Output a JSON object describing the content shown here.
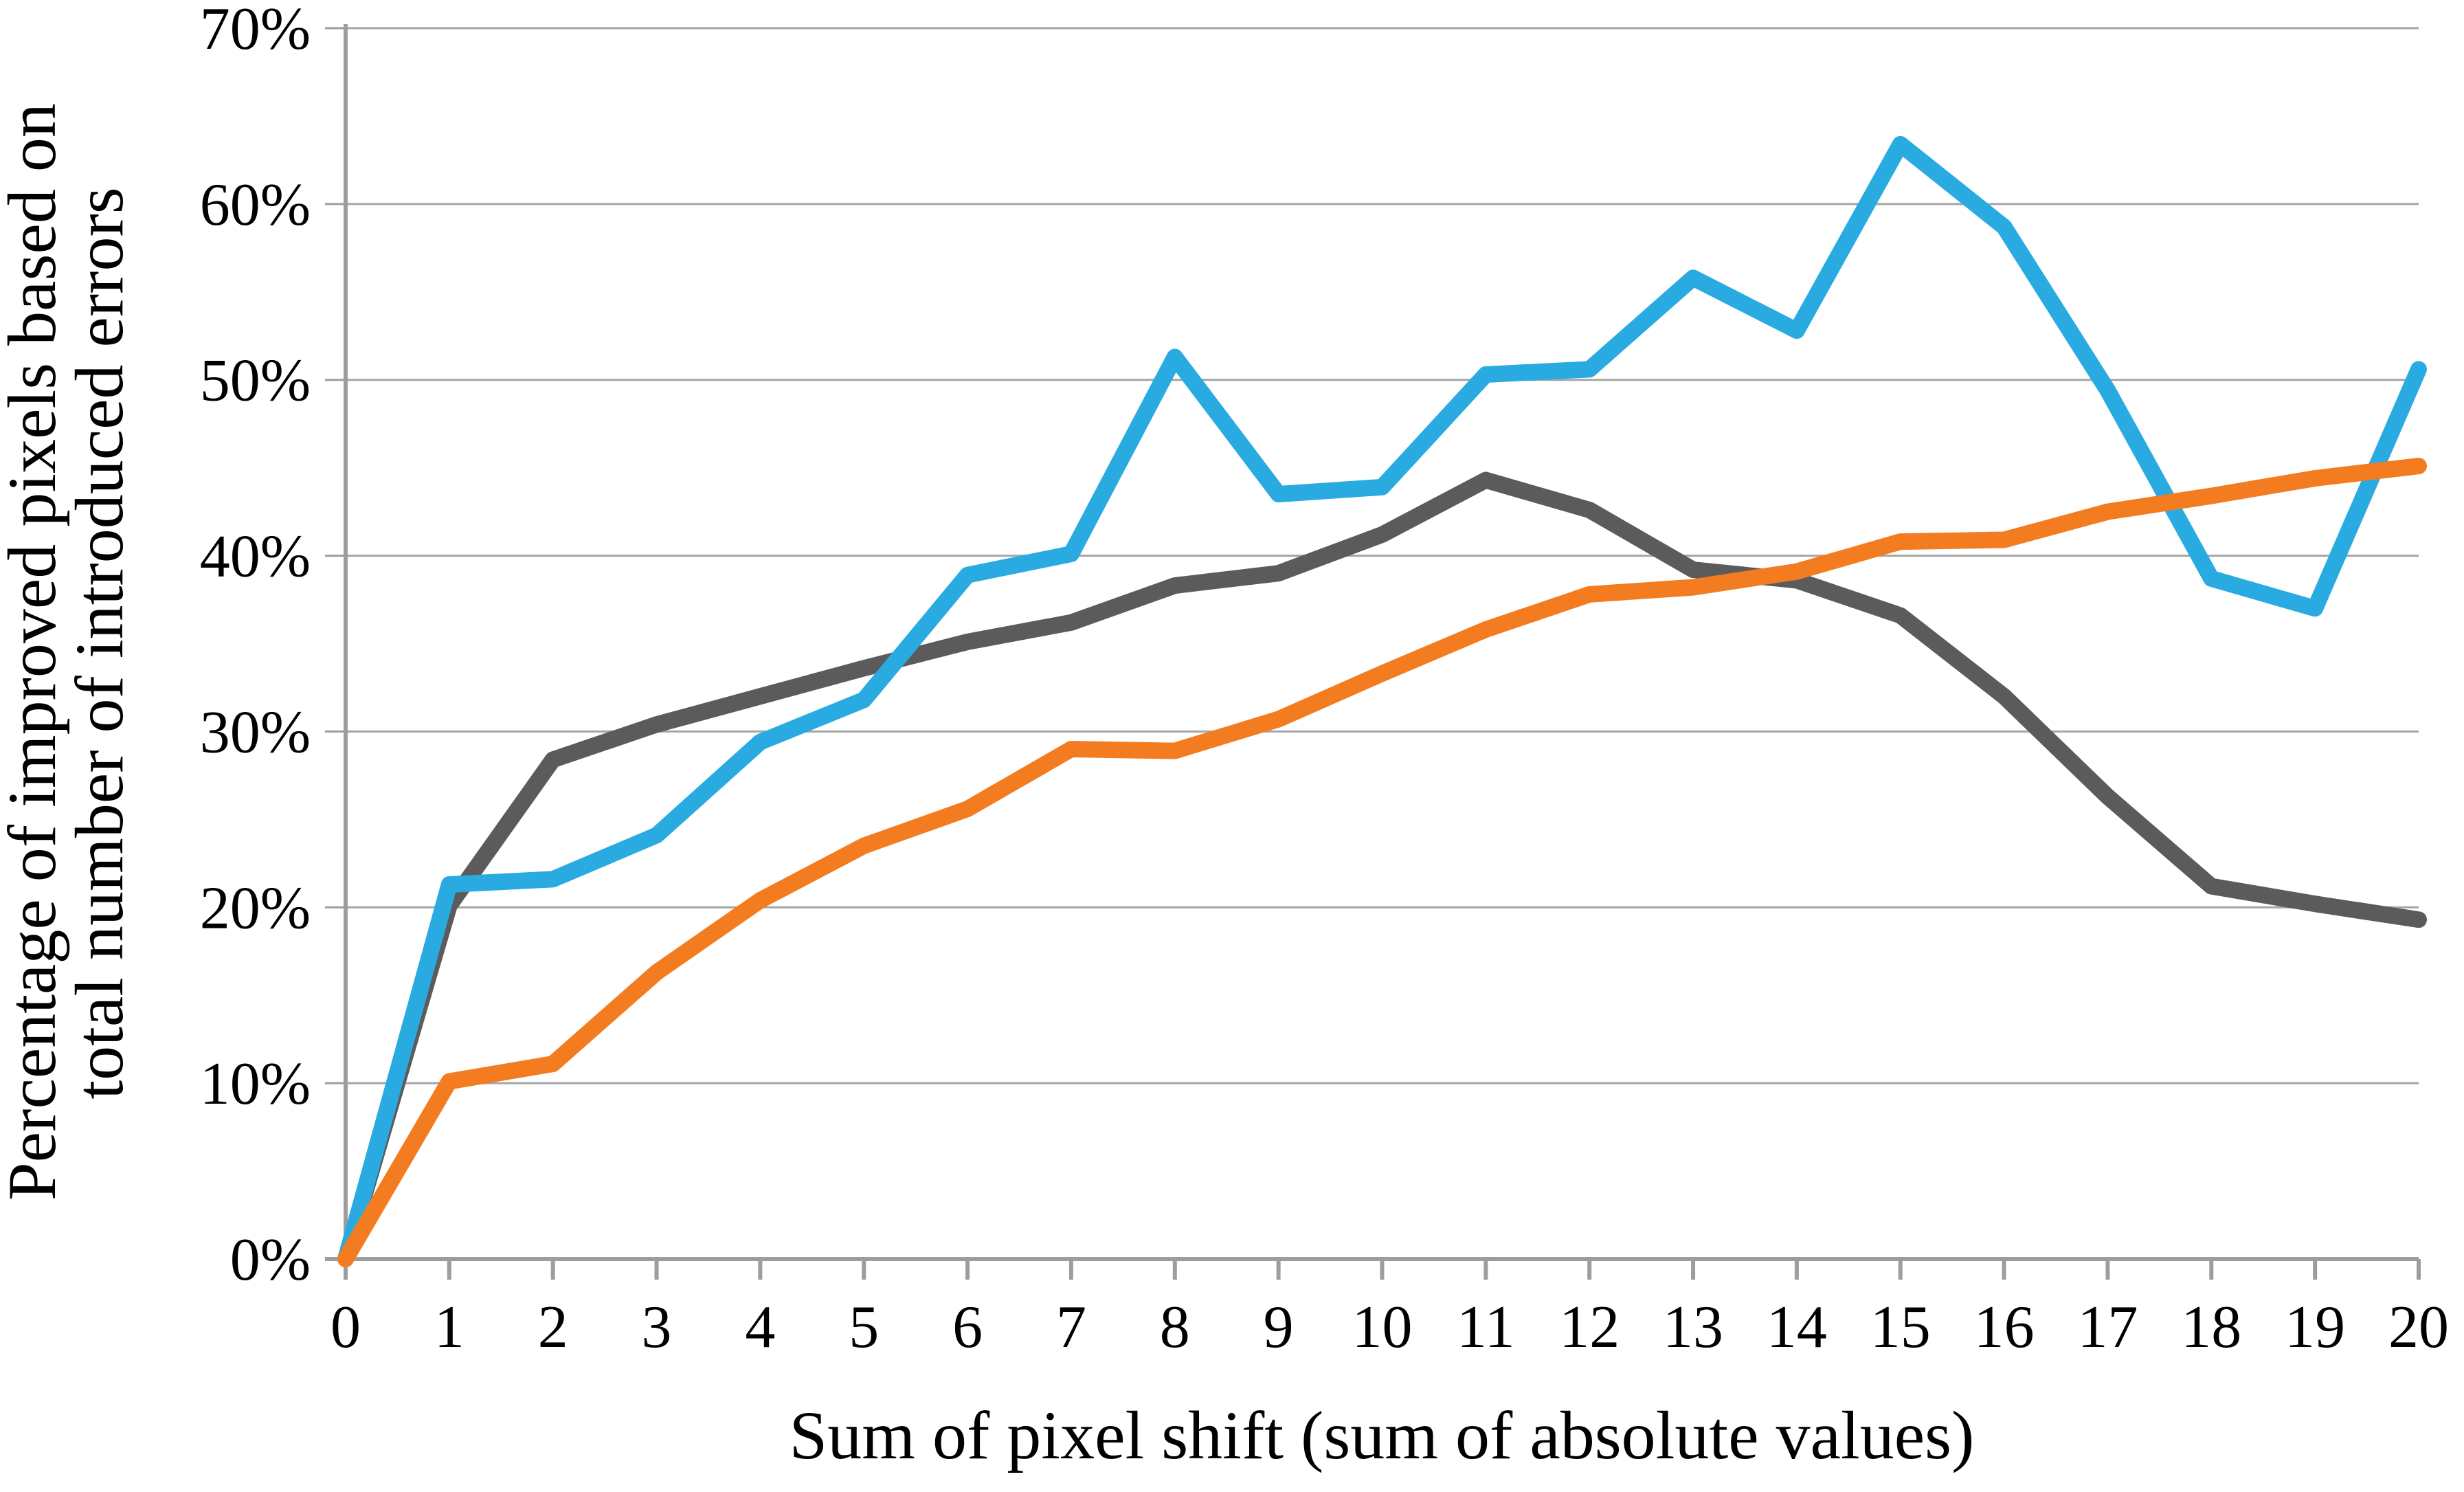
{
  "chart_data": {
    "type": "line",
    "title": "",
    "xlabel": "Sum of pixel shift (sum of absolute values)",
    "ylabel_lines": [
      "Percentage of improved pixels based on",
      "total number of introduced errors"
    ],
    "x": [
      0,
      1,
      2,
      3,
      4,
      5,
      6,
      7,
      8,
      9,
      10,
      11,
      12,
      13,
      14,
      15,
      16,
      17,
      18,
      19,
      20
    ],
    "x_tick_labels": [
      "0",
      "1",
      "2",
      "3",
      "4",
      "5",
      "6",
      "7",
      "8",
      "9",
      "10",
      "11",
      "12",
      "13",
      "14",
      "15",
      "16",
      "17",
      "18",
      "19",
      "20"
    ],
    "y_tick_labels": [
      "0%",
      "10%",
      "20%",
      "30%",
      "40%",
      "50%",
      "60%",
      "70%"
    ],
    "xlim": [
      0,
      20
    ],
    "ylim": [
      0,
      70
    ],
    "y_tick_step": 10,
    "grid": true,
    "legend_position": "none",
    "series": [
      {
        "name": "dark-gray-series",
        "color": "#5B5B5B",
        "values": [
          0,
          20.1,
          28.4,
          30.4,
          32.0,
          33.6,
          35.1,
          36.2,
          38.3,
          39.0,
          41.2,
          44.3,
          42.6,
          39.2,
          38.6,
          36.6,
          32.0,
          26.3,
          21.2,
          20.2,
          19.3
        ]
      },
      {
        "name": "blue-series",
        "color": "#29ABE2",
        "values": [
          0,
          21.3,
          21.6,
          24.1,
          29.4,
          31.8,
          38.9,
          40.1,
          51.3,
          43.5,
          43.9,
          50.3,
          50.6,
          55.8,
          52.8,
          63.4,
          58.7,
          49.4,
          38.7,
          37.0,
          50.6
        ]
      },
      {
        "name": "orange-series",
        "color": "#F47C20",
        "values": [
          0,
          10.1,
          11.1,
          16.3,
          20.4,
          23.5,
          25.6,
          29.0,
          28.9,
          30.7,
          33.3,
          35.8,
          37.8,
          38.2,
          39.1,
          40.8,
          40.9,
          42.5,
          43.4,
          44.4,
          45.1
        ]
      }
    ]
  },
  "style": {
    "background": "#FFFFFF",
    "grid_color": "#A5A5A5",
    "axis_color": "#9D9D9D",
    "text_color": "#000000",
    "series_line_width": 24,
    "grid_line_width": 3,
    "axis_line_width": 6
  }
}
